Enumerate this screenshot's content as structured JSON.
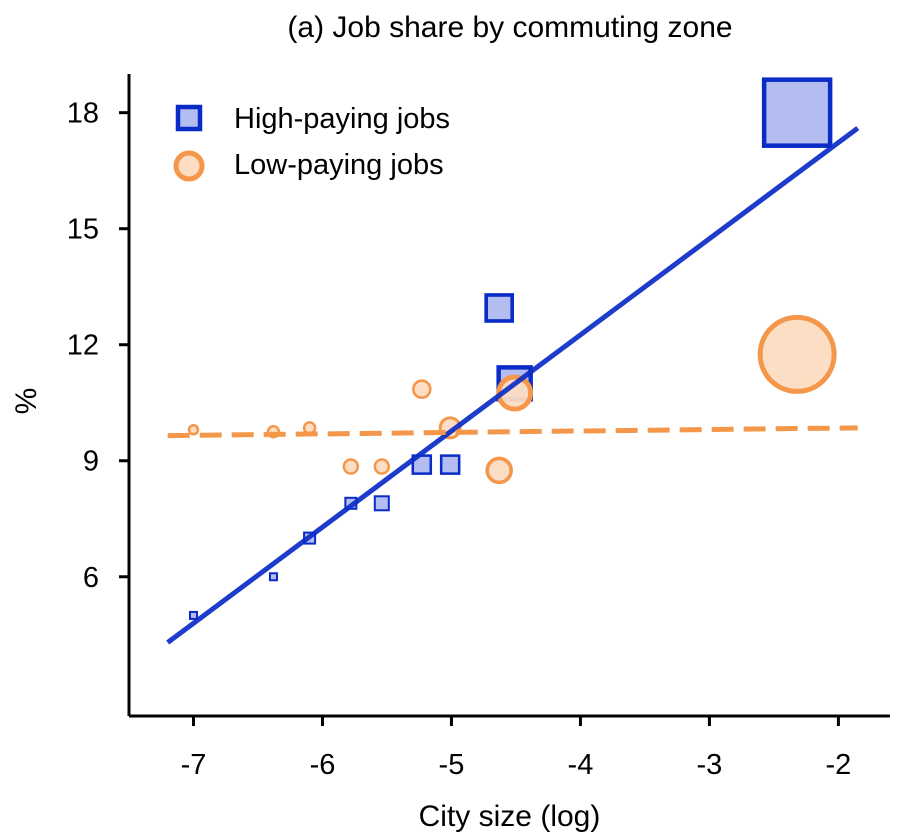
{
  "chart_data": {
    "type": "scatter",
    "title": "(a) Job share by commuting zone",
    "xlabel": "City size (log)",
    "ylabel": "%",
    "xlim": [
      -7.5,
      -1.6
    ],
    "ylim": [
      2.4,
      19.0
    ],
    "xticks": [
      -7,
      -6,
      -5,
      -4,
      -3,
      -2
    ],
    "xtick_labels": [
      "-7",
      "-6",
      "-5",
      "-4",
      "-3",
      "-2"
    ],
    "yticks": [
      6,
      9,
      12,
      15,
      18
    ],
    "ytick_labels": [
      "6",
      "9",
      "12",
      "15",
      "18"
    ],
    "grid": false,
    "legend_position": "top-left",
    "series": [
      {
        "name": "High-paying jobs",
        "marker": "square",
        "edge_color": "#0a2bc7",
        "fill_color": "#b4bdf0",
        "points": [
          {
            "x": -7.0,
            "y": 5.0,
            "size": 1
          },
          {
            "x": -6.38,
            "y": 6.0,
            "size": 1
          },
          {
            "x": -6.1,
            "y": 7.0,
            "size": 2
          },
          {
            "x": -5.78,
            "y": 7.9,
            "size": 2
          },
          {
            "x": -5.54,
            "y": 7.9,
            "size": 3
          },
          {
            "x": -5.23,
            "y": 8.9,
            "size": 4
          },
          {
            "x": -5.01,
            "y": 8.9,
            "size": 4
          },
          {
            "x": -4.63,
            "y": 12.95,
            "size": 6
          },
          {
            "x": -4.51,
            "y": 11.0,
            "size": 7
          },
          {
            "x": -2.32,
            "y": 18.0,
            "size": 11
          }
        ],
        "fit": {
          "x": [
            -7.2,
            -1.85
          ],
          "y": [
            4.3,
            17.6
          ],
          "style": "solid"
        }
      },
      {
        "name": "Low-paying jobs",
        "marker": "circle",
        "edge_color": "#f4974a",
        "fill_color": "#fcdcc2",
        "points": [
          {
            "x": -7.0,
            "y": 9.8,
            "size": 1
          },
          {
            "x": -6.38,
            "y": 9.75,
            "size": 2
          },
          {
            "x": -6.1,
            "y": 9.85,
            "size": 2
          },
          {
            "x": -5.78,
            "y": 8.85,
            "size": 3
          },
          {
            "x": -5.54,
            "y": 8.85,
            "size": 3
          },
          {
            "x": -5.23,
            "y": 10.85,
            "size": 4
          },
          {
            "x": -5.01,
            "y": 9.85,
            "size": 5
          },
          {
            "x": -4.63,
            "y": 8.75,
            "size": 6
          },
          {
            "x": -4.51,
            "y": 10.75,
            "size": 7
          },
          {
            "x": -2.32,
            "y": 11.75,
            "size": 11
          }
        ],
        "fit": {
          "x": [
            -7.2,
            -1.85
          ],
          "y": [
            9.65,
            9.85
          ],
          "style": "dashed"
        }
      }
    ]
  }
}
